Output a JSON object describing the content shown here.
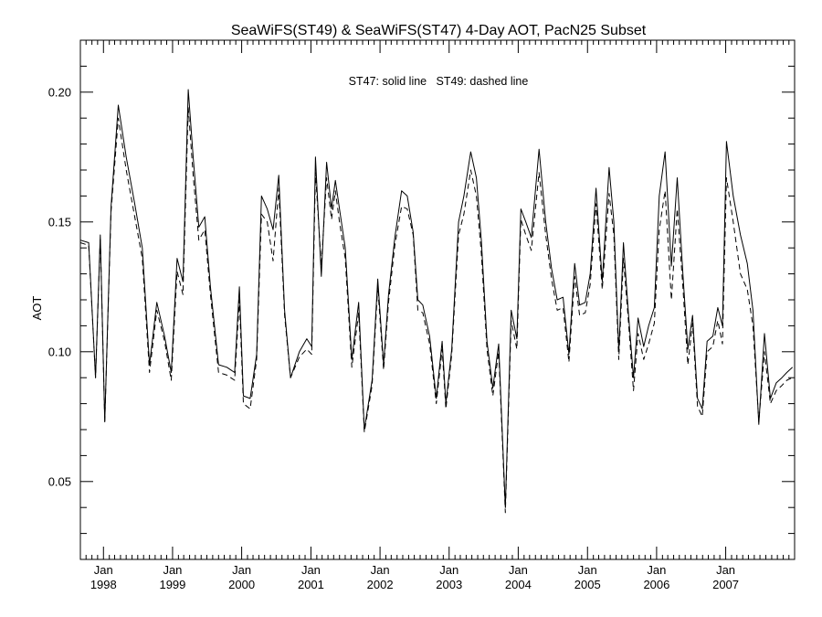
{
  "chart_data": {
    "type": "line",
    "title": "SeaWiFS(ST49) & SeaWiFS(ST47) 4-Day AOT, PacN25 Subset",
    "annotation": "ST47: solid line   ST49: dashed line",
    "xlabel": "",
    "ylabel": "AOT",
    "xlim": [
      "1997-09-01",
      "2007-12-31"
    ],
    "ylim": [
      0.02,
      0.22
    ],
    "y_ticks": [
      "0.05",
      "0.10",
      "0.15",
      "0.20"
    ],
    "x_ticks": [
      {
        "date": "1998-01-01",
        "line1": "Jan",
        "line2": "1998"
      },
      {
        "date": "1999-01-01",
        "line1": "Jan",
        "line2": "1999"
      },
      {
        "date": "2000-01-01",
        "line1": "Jan",
        "line2": "2000"
      },
      {
        "date": "2001-01-01",
        "line1": "Jan",
        "line2": "2001"
      },
      {
        "date": "2002-01-01",
        "line1": "Jan",
        "line2": "2002"
      },
      {
        "date": "2003-01-01",
        "line1": "Jan",
        "line2": "2003"
      },
      {
        "date": "2004-01-01",
        "line1": "Jan",
        "line2": "2004"
      },
      {
        "date": "2005-01-01",
        "line1": "Jan",
        "line2": "2005"
      },
      {
        "date": "2006-01-01",
        "line1": "Jan",
        "line2": "2006"
      },
      {
        "date": "2007-01-01",
        "line1": "Jan",
        "line2": "2007"
      }
    ],
    "series": [
      {
        "name": "ST47",
        "style": "solid",
        "color": "#000000",
        "x": [
          "1997-09-01",
          "1997-10-15",
          "1997-11-20",
          "1997-12-15",
          "1998-01-08",
          "1998-02-10",
          "1998-03-20",
          "1998-05-01",
          "1998-06-15",
          "1998-07-25",
          "1998-09-01",
          "1998-10-10",
          "1998-11-20",
          "1998-12-25",
          "1999-01-25",
          "1999-02-25",
          "1999-03-25",
          "1999-04-20",
          "1999-05-20",
          "1999-06-20",
          "1999-07-20",
          "1999-09-01",
          "1999-10-15",
          "1999-11-25",
          "1999-12-20",
          "2000-01-10",
          "2000-02-15",
          "2000-03-20",
          "2000-04-15",
          "2000-05-15",
          "2000-06-15",
          "2000-07-15",
          "2000-08-15",
          "2000-09-15",
          "2000-11-01",
          "2000-12-10",
          "2001-01-05",
          "2001-01-25",
          "2001-02-25",
          "2001-03-25",
          "2001-04-20",
          "2001-05-10",
          "2001-06-01",
          "2001-07-01",
          "2001-08-05",
          "2001-09-10",
          "2001-10-10",
          "2001-11-20",
          "2001-12-20",
          "2002-01-20",
          "2002-02-15",
          "2002-03-20",
          "2002-04-25",
          "2002-05-25",
          "2002-06-25",
          "2002-07-20",
          "2002-08-15",
          "2002-09-20",
          "2002-10-25",
          "2002-11-25",
          "2002-12-15",
          "2003-01-15",
          "2003-02-20",
          "2003-03-20",
          "2003-04-25",
          "2003-05-25",
          "2003-06-20",
          "2003-07-20",
          "2003-08-20",
          "2003-09-20",
          "2003-10-25",
          "2003-11-25",
          "2003-12-25",
          "2004-01-15",
          "2004-02-10",
          "2004-03-10",
          "2004-04-20",
          "2004-05-25",
          "2004-06-25",
          "2004-07-25",
          "2004-08-25",
          "2004-09-25",
          "2004-10-25",
          "2004-11-20",
          "2004-12-20",
          "2005-01-15",
          "2005-02-15",
          "2005-03-20",
          "2005-04-25",
          "2005-05-20",
          "2005-06-15",
          "2005-07-10",
          "2005-08-05",
          "2005-09-01",
          "2005-09-25",
          "2005-10-25",
          "2005-11-20",
          "2005-12-20",
          "2006-01-15",
          "2006-02-15",
          "2006-03-20",
          "2006-04-20",
          "2006-05-20",
          "2006-06-15",
          "2006-07-10",
          "2006-08-05",
          "2006-08-30",
          "2006-09-25",
          "2006-10-25",
          "2006-11-20",
          "2006-12-15",
          "2007-01-05",
          "2007-02-10",
          "2007-03-20",
          "2007-04-25",
          "2007-05-25",
          "2007-06-25",
          "2007-07-25",
          "2007-08-25",
          "2007-09-25",
          "2007-10-25",
          "2007-11-20",
          "2007-12-20"
        ],
        "y": [
          0.143,
          0.142,
          0.09,
          0.145,
          0.073,
          0.156,
          0.195,
          0.175,
          0.157,
          0.14,
          0.095,
          0.119,
          0.106,
          0.092,
          0.136,
          0.127,
          0.201,
          0.175,
          0.148,
          0.152,
          0.125,
          0.095,
          0.094,
          0.092,
          0.125,
          0.083,
          0.082,
          0.099,
          0.16,
          0.155,
          0.147,
          0.168,
          0.116,
          0.09,
          0.1,
          0.105,
          0.102,
          0.175,
          0.129,
          0.173,
          0.155,
          0.166,
          0.155,
          0.14,
          0.097,
          0.119,
          0.07,
          0.089,
          0.128,
          0.095,
          0.122,
          0.144,
          0.162,
          0.16,
          0.146,
          0.12,
          0.118,
          0.106,
          0.082,
          0.104,
          0.08,
          0.101,
          0.15,
          0.16,
          0.177,
          0.167,
          0.143,
          0.104,
          0.086,
          0.103,
          0.04,
          0.116,
          0.105,
          0.155,
          0.15,
          0.144,
          0.178,
          0.15,
          0.132,
          0.12,
          0.121,
          0.099,
          0.134,
          0.118,
          0.119,
          0.13,
          0.163,
          0.127,
          0.171,
          0.15,
          0.1,
          0.142,
          0.115,
          0.09,
          0.113,
          0.102,
          0.11,
          0.117,
          0.16,
          0.177,
          0.133,
          0.167,
          0.13,
          0.101,
          0.114,
          0.082,
          0.078,
          0.104,
          0.106,
          0.117,
          0.11,
          0.181,
          0.16,
          0.145,
          0.134,
          0.116,
          0.072,
          0.107,
          0.082,
          0.088,
          0.09,
          0.092,
          0.094
        ]
      },
      {
        "name": "ST49",
        "style": "dashed",
        "color": "#000000",
        "x": [
          "1997-09-01",
          "1997-10-15",
          "1997-11-20",
          "1997-12-15",
          "1998-01-08",
          "1998-02-10",
          "1998-03-20",
          "1998-05-01",
          "1998-06-15",
          "1998-07-25",
          "1998-09-01",
          "1998-10-10",
          "1998-11-20",
          "1998-12-25",
          "1999-01-25",
          "1999-02-25",
          "1999-03-25",
          "1999-04-20",
          "1999-05-20",
          "1999-06-20",
          "1999-07-20",
          "1999-09-01",
          "1999-10-15",
          "1999-11-25",
          "1999-12-20",
          "2000-01-10",
          "2000-02-15",
          "2000-03-20",
          "2000-04-15",
          "2000-05-15",
          "2000-06-15",
          "2000-07-15",
          "2000-08-15",
          "2000-09-15",
          "2000-11-01",
          "2000-12-10",
          "2001-01-05",
          "2001-01-25",
          "2001-02-25",
          "2001-03-25",
          "2001-04-20",
          "2001-05-10",
          "2001-06-01",
          "2001-07-01",
          "2001-08-05",
          "2001-09-10",
          "2001-10-10",
          "2001-11-20",
          "2001-12-20",
          "2002-01-20",
          "2002-02-15",
          "2002-03-20",
          "2002-04-25",
          "2002-05-25",
          "2002-06-25",
          "2002-07-20",
          "2002-08-15",
          "2002-09-20",
          "2002-10-25",
          "2002-11-25",
          "2002-12-15",
          "2003-01-15",
          "2003-02-20",
          "2003-03-20",
          "2003-04-25",
          "2003-05-25",
          "2003-06-20",
          "2003-07-20",
          "2003-08-20",
          "2003-09-20",
          "2003-10-25",
          "2003-11-25",
          "2003-12-25",
          "2004-01-15",
          "2004-02-10",
          "2004-03-10",
          "2004-04-20",
          "2004-05-25",
          "2004-06-25",
          "2004-07-25",
          "2004-08-25",
          "2004-09-25",
          "2004-10-25",
          "2004-11-20",
          "2004-12-20",
          "2005-01-15",
          "2005-02-15",
          "2005-03-20",
          "2005-04-25",
          "2005-05-20",
          "2005-06-15",
          "2005-07-10",
          "2005-08-05",
          "2005-09-01",
          "2005-09-25",
          "2005-10-25",
          "2005-11-20",
          "2005-12-20",
          "2006-01-15",
          "2006-02-15",
          "2006-03-20",
          "2006-04-20",
          "2006-05-20",
          "2006-06-15",
          "2006-07-10",
          "2006-08-05",
          "2006-08-30",
          "2006-09-25",
          "2006-10-25",
          "2006-11-20",
          "2006-12-15",
          "2007-01-05",
          "2007-02-10",
          "2007-03-20",
          "2007-04-25",
          "2007-05-25",
          "2007-06-25",
          "2007-07-25",
          "2007-08-25",
          "2007-09-25",
          "2007-10-25",
          "2007-11-20",
          "2007-12-20"
        ],
        "y": [
          0.142,
          0.141,
          0.09,
          0.144,
          0.073,
          0.154,
          0.19,
          0.17,
          0.152,
          0.136,
          0.092,
          0.116,
          0.104,
          0.089,
          0.131,
          0.122,
          0.194,
          0.168,
          0.143,
          0.147,
          0.122,
          0.092,
          0.091,
          0.089,
          0.12,
          0.08,
          0.078,
          0.097,
          0.153,
          0.15,
          0.135,
          0.163,
          0.114,
          0.09,
          0.098,
          0.101,
          0.099,
          0.169,
          0.133,
          0.167,
          0.151,
          0.162,
          0.15,
          0.136,
          0.094,
          0.115,
          0.069,
          0.087,
          0.125,
          0.093,
          0.119,
          0.141,
          0.156,
          0.155,
          0.145,
          0.116,
          0.115,
          0.103,
          0.08,
          0.101,
          0.078,
          0.099,
          0.145,
          0.153,
          0.17,
          0.16,
          0.138,
          0.101,
          0.083,
          0.1,
          0.038,
          0.112,
          0.101,
          0.151,
          0.145,
          0.139,
          0.169,
          0.145,
          0.128,
          0.116,
          0.117,
          0.096,
          0.129,
          0.114,
          0.115,
          0.126,
          0.157,
          0.124,
          0.161,
          0.145,
          0.097,
          0.136,
          0.112,
          0.085,
          0.107,
          0.097,
          0.103,
          0.111,
          0.147,
          0.162,
          0.12,
          0.155,
          0.125,
          0.095,
          0.111,
          0.079,
          0.075,
          0.1,
          0.102,
          0.112,
          0.103,
          0.167,
          0.15,
          0.13,
          0.124,
          0.11,
          0.073,
          0.1,
          0.08,
          0.085,
          0.087,
          0.089,
          0.09
        ]
      }
    ]
  }
}
